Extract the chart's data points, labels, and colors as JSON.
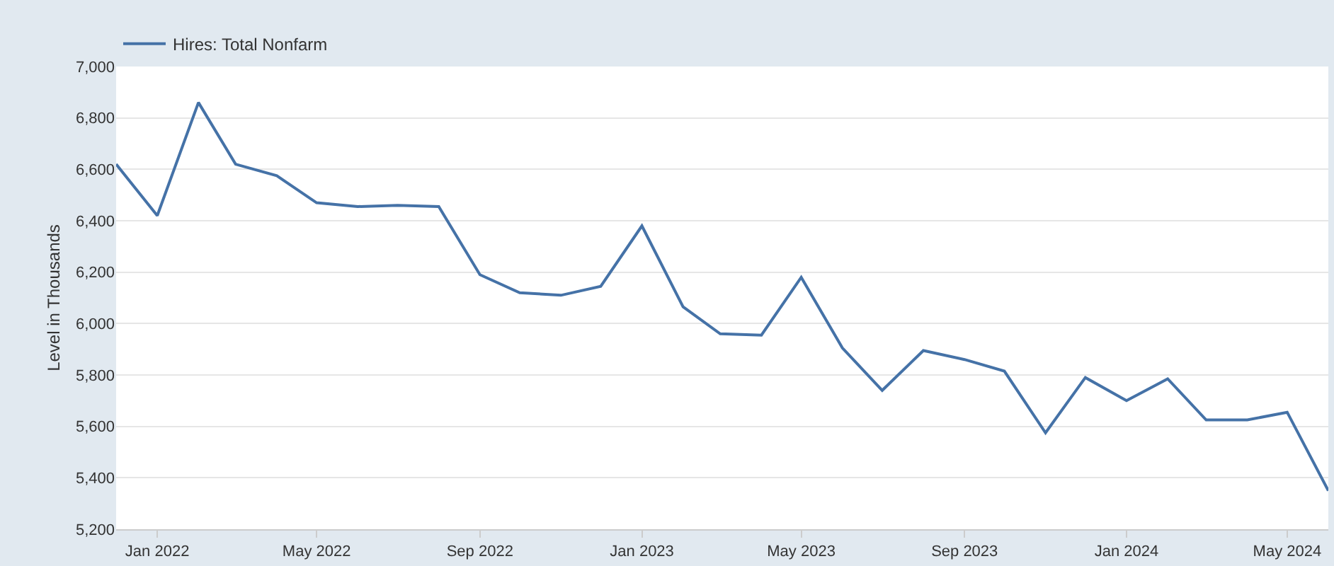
{
  "chart_data": {
    "type": "line",
    "ylabel": "Level in Thousands",
    "x": [
      "2021-12",
      "2022-01",
      "2022-02",
      "2022-03",
      "2022-04",
      "2022-05",
      "2022-06",
      "2022-07",
      "2022-08",
      "2022-09",
      "2022-10",
      "2022-11",
      "2022-12",
      "2023-01",
      "2023-02",
      "2023-03",
      "2023-04",
      "2023-05",
      "2023-06",
      "2023-07",
      "2023-08",
      "2023-09",
      "2023-10",
      "2023-11",
      "2023-12",
      "2024-01",
      "2024-02",
      "2024-03",
      "2024-04",
      "2024-05",
      "2024-06"
    ],
    "series": [
      {
        "name": "Hires: Total Nonfarm",
        "color": "#4572a7",
        "values": [
          6620,
          6420,
          6860,
          6620,
          6575,
          6470,
          6455,
          6460,
          6455,
          6190,
          6120,
          6110,
          6145,
          6380,
          6065,
          5960,
          5955,
          6180,
          5905,
          5740,
          5895,
          5860,
          5815,
          5575,
          5790,
          5700,
          5785,
          5625,
          5625,
          5655,
          5350
        ]
      }
    ],
    "xlim": [
      "2021-12",
      "2024-06"
    ],
    "xticks": [
      {
        "value": "2022-01",
        "label": "Jan 2022"
      },
      {
        "value": "2022-05",
        "label": "May 2022"
      },
      {
        "value": "2022-09",
        "label": "Sep 2022"
      },
      {
        "value": "2023-01",
        "label": "Jan 2023"
      },
      {
        "value": "2023-05",
        "label": "May 2023"
      },
      {
        "value": "2023-09",
        "label": "Sep 2023"
      },
      {
        "value": "2024-01",
        "label": "Jan 2024"
      },
      {
        "value": "2024-05",
        "label": "May 2024"
      }
    ],
    "ylim": [
      5200,
      7000
    ],
    "yticks": [
      {
        "value": 5200,
        "label": "5,200"
      },
      {
        "value": 5400,
        "label": "5,400"
      },
      {
        "value": 5600,
        "label": "5,600"
      },
      {
        "value": 5800,
        "label": "5,800"
      },
      {
        "value": 6000,
        "label": "6,000"
      },
      {
        "value": 6200,
        "label": "6,200"
      },
      {
        "value": 6400,
        "label": "6,400"
      },
      {
        "value": 6600,
        "label": "6,600"
      },
      {
        "value": 6800,
        "label": "6,800"
      },
      {
        "value": 7000,
        "label": "7,000"
      }
    ],
    "grid": "y",
    "legend": "top left",
    "marker": "none",
    "line_style": "solid"
  }
}
